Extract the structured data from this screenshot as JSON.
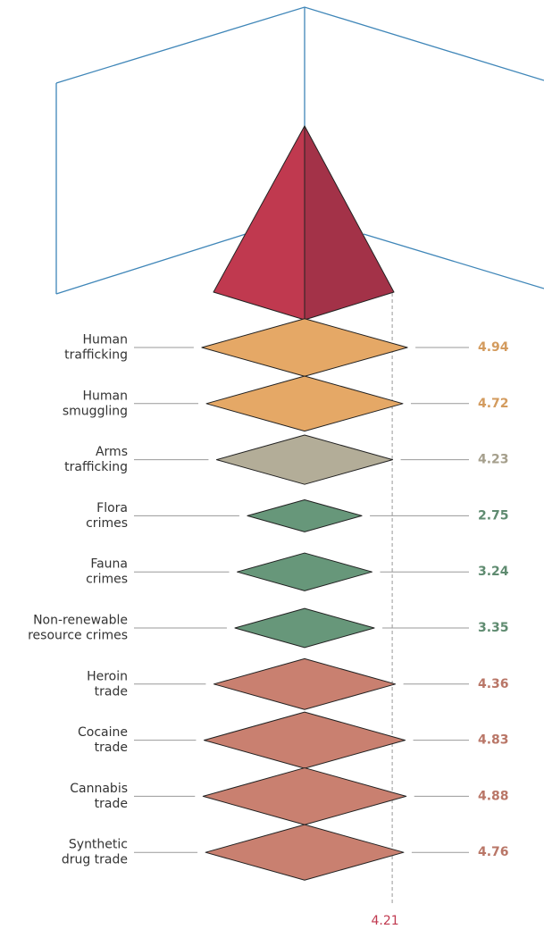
{
  "chart_data": {
    "type": "diamond",
    "categories": [
      [
        "Human",
        "trafficking"
      ],
      [
        "Human",
        "smuggling"
      ],
      [
        "Arms",
        "trafficking"
      ],
      [
        "Flora",
        "crimes"
      ],
      [
        "Fauna",
        "crimes"
      ],
      [
        "Non-renewable",
        "resource crimes"
      ],
      [
        "Heroin",
        "trade"
      ],
      [
        "Cocaine",
        "trade"
      ],
      [
        "Cannabis",
        "trade"
      ],
      [
        "Synthetic",
        "drug trade"
      ]
    ],
    "values": [
      4.94,
      4.72,
      4.23,
      2.75,
      3.24,
      3.35,
      4.36,
      4.83,
      4.88,
      4.76
    ],
    "colors": [
      "#e5a866",
      "#e5a866",
      "#b3ad98",
      "#67977a",
      "#67977a",
      "#67977a",
      "#c98070",
      "#c98070",
      "#c98070",
      "#c98070"
    ],
    "reference_line": 4.21,
    "reference_color": "#c0394f"
  }
}
